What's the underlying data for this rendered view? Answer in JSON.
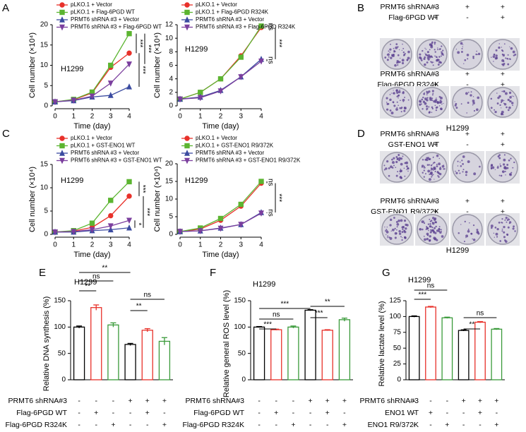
{
  "chart_data": [
    {
      "type": "line",
      "panel": "A",
      "cell_line": "H1299",
      "xlabel": "Time (day)",
      "ylabel": "Cell number (×10⁴)",
      "x": [
        0,
        1,
        2,
        3,
        4
      ],
      "xlim": [
        0,
        4
      ],
      "xticks": [
        0,
        1,
        2,
        3,
        4
      ],
      "ylim": [
        0,
        20
      ],
      "yticks": [
        0,
        5,
        10,
        15,
        20
      ],
      "series": [
        {
          "name": "pLKO.1 + Vector",
          "color": "#e8312a",
          "marker": "circle",
          "values": [
            1,
            1.5,
            3.2,
            9.5,
            13
          ]
        },
        {
          "name": "pLKO.1 + Flag-6PGD WT",
          "color": "#5cb531",
          "marker": "square",
          "values": [
            1,
            1.6,
            3.4,
            10,
            17.8
          ]
        },
        {
          "name": "PRMT6 shRNA #3 + Vector",
          "color": "#3b4ba0",
          "marker": "triangle-up",
          "values": [
            1,
            1.3,
            2.2,
            2.6,
            4.7
          ]
        },
        {
          "name": "PRMT6 shRNA #3 + Flag-6PGD WT",
          "color": "#7b3f9e",
          "marker": "triangle-down",
          "values": [
            1,
            1.4,
            2.4,
            5.6,
            10.3
          ]
        }
      ],
      "annotations": [
        "***",
        "***",
        "***"
      ]
    },
    {
      "type": "line",
      "cell_line": "H1299",
      "xlabel": "Time (day)",
      "ylabel": "Cell number (×10⁴)",
      "x": [
        0,
        1,
        2,
        3,
        4
      ],
      "xlim": [
        0,
        4
      ],
      "xticks": [
        0,
        1,
        2,
        3,
        4
      ],
      "ylim": [
        0,
        12
      ],
      "yticks": [
        0,
        2,
        4,
        6,
        8,
        10,
        12
      ],
      "series": [
        {
          "name": "pLKO.1 + Vector",
          "color": "#e8312a",
          "marker": "circle",
          "values": [
            1,
            2,
            4,
            7.4,
            11.6
          ]
        },
        {
          "name": "pLKO.1 + Flag-6PGD R324K",
          "color": "#5cb531",
          "marker": "square",
          "values": [
            1,
            2,
            4,
            7.2,
            11.8
          ]
        },
        {
          "name": "PRMT6 shRNA #3 + Vector",
          "color": "#3b4ba0",
          "marker": "triangle-up",
          "values": [
            1,
            1.3,
            2.3,
            4.3,
            6.9
          ]
        },
        {
          "name": "PRMT6 shRNA #3 + Flag-6PGD R324K",
          "color": "#7b3f9e",
          "marker": "triangle-down",
          "values": [
            1,
            1.2,
            2.2,
            4.3,
            6.6
          ]
        }
      ],
      "annotations": [
        "ns",
        "ns",
        "***"
      ]
    },
    {
      "type": "line",
      "panel": "C",
      "cell_line": "H1299",
      "xlabel": "Time (day)",
      "ylabel": "Cell number (×10⁴)",
      "x": [
        0,
        1,
        2,
        3,
        4
      ],
      "xlim": [
        0,
        4
      ],
      "xticks": [
        0,
        1,
        2,
        3,
        4
      ],
      "ylim": [
        0,
        15
      ],
      "yticks": [
        0,
        5,
        10,
        15
      ],
      "series": [
        {
          "name": "pLKO.1 + Vector",
          "color": "#e8312a",
          "marker": "circle",
          "values": [
            0.5,
            0.7,
            1.5,
            4,
            8.2
          ]
        },
        {
          "name": "pLKO.1 + GST-ENO1 WT",
          "color": "#5cb531",
          "marker": "square",
          "values": [
            0.5,
            0.8,
            2.4,
            7.3,
            11.3
          ]
        },
        {
          "name": "PRMT6 shRNA #3 + Vector",
          "color": "#3b4ba0",
          "marker": "triangle-up",
          "values": [
            0.5,
            0.5,
            0.8,
            1,
            1.4
          ]
        },
        {
          "name": "PRMT6 shRNA #3 + GST-ENO1 WT",
          "color": "#7b3f9e",
          "marker": "triangle-down",
          "values": [
            0.5,
            0.6,
            1,
            1.8,
            3
          ]
        }
      ],
      "annotations": [
        "***",
        "***",
        "*"
      ]
    },
    {
      "type": "line",
      "cell_line": "H1299",
      "xlabel": "Time (day)",
      "ylabel": "Cell number (×10⁴)",
      "x": [
        0,
        1,
        2,
        3,
        4
      ],
      "xlim": [
        0,
        4
      ],
      "xticks": [
        0,
        1,
        2,
        3,
        4
      ],
      "ylim": [
        0,
        20
      ],
      "yticks": [
        0,
        5,
        10,
        15,
        20
      ],
      "series": [
        {
          "name": "pLKO.1 + Vector",
          "color": "#e8312a",
          "marker": "circle",
          "values": [
            0.8,
            1.5,
            4,
            8,
            14.5
          ]
        },
        {
          "name": "pLKO.1 + GST-ENO1 R9/372K",
          "color": "#5cb531",
          "marker": "square",
          "values": [
            0.8,
            1.8,
            4.5,
            8.5,
            15
          ]
        },
        {
          "name": "PRMT6 shRNA #3 + Vector",
          "color": "#3b4ba0",
          "marker": "triangle-up",
          "values": [
            0.8,
            1,
            1.8,
            2.8,
            6.2
          ]
        },
        {
          "name": "PRMT6 shRNA #3 + GST-ENO1 R9/372K",
          "color": "#7b3f9e",
          "marker": "triangle-down",
          "values": [
            0.8,
            1,
            1.7,
            2.8,
            6
          ]
        }
      ],
      "annotations": [
        "ns",
        "ns",
        "***"
      ]
    },
    {
      "type": "bar",
      "panel": "E",
      "cell_line": "H1299",
      "ylabel": "Relative DNA synthesis (%)",
      "categories": [
        null,
        null,
        null,
        null,
        null,
        null
      ],
      "values": [
        100,
        137,
        104,
        67,
        94,
        73
      ],
      "errors": [
        2,
        5,
        4,
        2,
        3,
        7
      ],
      "colors": [
        "#000000",
        "#e8312a",
        "#3a9a3a",
        "#000000",
        "#e8312a",
        "#3a9a3a"
      ],
      "ylim": [
        0,
        150
      ],
      "yticks": [
        0,
        50,
        100,
        150
      ],
      "conditions": [
        {
          "name": "PRMT6 shRNA#3",
          "marks": [
            "-",
            "-",
            "-",
            "+",
            "+",
            "+"
          ]
        },
        {
          "name": "Flag-6PGD WT",
          "marks": [
            "-",
            "+",
            "-",
            "-",
            "+",
            "-"
          ]
        },
        {
          "name": "Flag-6PGD R324K",
          "marks": [
            "-",
            "-",
            "+",
            "-",
            "-",
            "+"
          ]
        }
      ],
      "annotations": [
        "**",
        "ns",
        "**",
        "**",
        "ns"
      ]
    },
    {
      "type": "bar",
      "panel": "F",
      "cell_line": "H1299",
      "ylabel": "Relative general ROS level (%)",
      "categories": [
        null,
        null,
        null,
        null,
        null,
        null
      ],
      "values": [
        100,
        95,
        100,
        132,
        94,
        114
      ],
      "errors": [
        1,
        1,
        2,
        1,
        1,
        3
      ],
      "colors": [
        "#000000",
        "#e8312a",
        "#3a9a3a",
        "#000000",
        "#e8312a",
        "#3a9a3a"
      ],
      "ylim": [
        0,
        150
      ],
      "yticks": [
        0,
        50,
        100,
        150
      ],
      "conditions": [
        {
          "name": "PRMT6 shRNA#3",
          "marks": [
            "-",
            "-",
            "-",
            "+",
            "+",
            "+"
          ]
        },
        {
          "name": "Flag-6PGD WT",
          "marks": [
            "-",
            "+",
            "-",
            "-",
            "+",
            "-"
          ]
        },
        {
          "name": "Flag-6PGD R324K",
          "marks": [
            "-",
            "-",
            "+",
            "-",
            "-",
            "+"
          ]
        }
      ],
      "annotations": [
        "***",
        "ns",
        "***",
        "***",
        "**"
      ]
    },
    {
      "type": "bar",
      "panel": "G",
      "cell_line": "H1299",
      "ylabel": "Relative lactate level (%)",
      "categories": [
        null,
        null,
        null,
        null,
        null,
        null
      ],
      "values": [
        100,
        115,
        98,
        78,
        91,
        80
      ],
      "errors": [
        1,
        1,
        1,
        1,
        1,
        1
      ],
      "colors": [
        "#000000",
        "#e8312a",
        "#3a9a3a",
        "#000000",
        "#e8312a",
        "#3a9a3a"
      ],
      "ylim": [
        0,
        125
      ],
      "yticks": [
        0,
        25,
        50,
        75,
        100,
        125
      ],
      "conditions": [
        {
          "name": "PRMT6 shRNA#3",
          "marks": [
            "-",
            "-",
            "-",
            "+",
            "+",
            "+"
          ]
        },
        {
          "name": "ENO1 WT",
          "marks": [
            "-",
            "+",
            "-",
            "-",
            "+",
            "-"
          ]
        },
        {
          "name": "ENO1 R9/372K",
          "marks": [
            "-",
            "-",
            "+",
            "-",
            "-",
            "+"
          ]
        }
      ],
      "annotations": [
        "***",
        "ns",
        "**",
        "ns"
      ]
    }
  ],
  "colony_assays": [
    {
      "panel": "B",
      "cell_line": "H1299",
      "rows": [
        {
          "conditions": [
            {
              "name": "PRMT6 shRNA#3",
              "marks": [
                "-",
                "-",
                "+",
                "+"
              ]
            },
            {
              "name": "Flag-6PGD WT",
              "marks": [
                "-",
                "+",
                "-",
                "+"
              ]
            }
          ]
        },
        {
          "conditions": [
            {
              "name": "PRMT6 shRNA#3",
              "marks": [
                "-",
                "-",
                "+",
                "+"
              ]
            },
            {
              "name": "Flag-6PGD R324K",
              "marks": [
                "-",
                "+",
                "-",
                "+"
              ]
            }
          ]
        }
      ]
    },
    {
      "panel": "D",
      "cell_line": "H1299",
      "rows": [
        {
          "conditions": [
            {
              "name": "PRMT6 shRNA#3",
              "marks": [
                "-",
                "-",
                "+",
                "+"
              ]
            },
            {
              "name": "GST-ENO1 WT",
              "marks": [
                "-",
                "+",
                "-",
                "+"
              ]
            }
          ]
        },
        {
          "conditions": [
            {
              "name": "PRMT6 shRNA#3",
              "marks": [
                "-",
                "-",
                "+",
                "+"
              ]
            },
            {
              "name": "GST-ENO1 R9/372K",
              "marks": [
                "-",
                "+",
                "-",
                "+"
              ]
            }
          ]
        }
      ]
    }
  ]
}
